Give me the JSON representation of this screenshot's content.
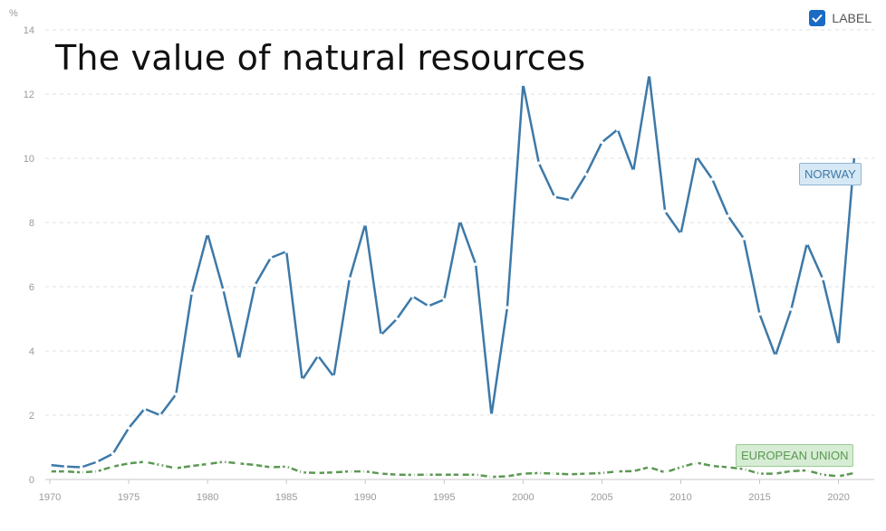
{
  "title": "The value of natural resources",
  "legend": {
    "label": "LABEL",
    "checked": true,
    "check_color": "#1a6bc4"
  },
  "chart_data": {
    "type": "line",
    "title": "The value of natural resources",
    "ylabel": "%",
    "xlabel": "",
    "ylim": [
      0,
      14
    ],
    "yticks": [
      "0",
      "2",
      "4",
      "6",
      "8",
      "10",
      "12",
      "14"
    ],
    "xticks": [
      "1970",
      "1975",
      "1980",
      "1985",
      "1990",
      "1995",
      "2000",
      "2005",
      "2010",
      "2015",
      "2020"
    ],
    "grid": true,
    "x": [
      1970,
      1971,
      1972,
      1973,
      1974,
      1975,
      1976,
      1977,
      1978,
      1979,
      1980,
      1981,
      1982,
      1983,
      1984,
      1985,
      1986,
      1987,
      1988,
      1989,
      1990,
      1991,
      1992,
      1993,
      1994,
      1995,
      1996,
      1997,
      1998,
      1999,
      2000,
      2001,
      2002,
      2003,
      2004,
      2005,
      2006,
      2007,
      2008,
      2009,
      2010,
      2011,
      2012,
      2013,
      2014,
      2015,
      2016,
      2017,
      2018,
      2019,
      2020,
      2021
    ],
    "series": [
      {
        "name": "NORWAY",
        "color": "#3d79a8",
        "values": [
          0.45,
          0.4,
          0.38,
          0.55,
          0.8,
          1.6,
          2.2,
          2.0,
          2.65,
          5.8,
          7.65,
          5.9,
          3.75,
          6.05,
          6.9,
          7.1,
          3.1,
          3.85,
          3.2,
          6.25,
          7.95,
          4.5,
          5.0,
          5.7,
          5.4,
          5.6,
          8.05,
          6.7,
          2.0,
          5.35,
          12.3,
          9.85,
          8.8,
          8.7,
          9.5,
          10.5,
          10.9,
          9.6,
          12.6,
          8.35,
          7.65,
          10.05,
          9.35,
          8.2,
          7.5,
          5.15,
          3.85,
          5.3,
          7.35,
          6.25,
          4.2,
          10.05
        ]
      },
      {
        "name": "EUROPEAN UNION",
        "color": "#5b9852",
        "values": [
          0.25,
          0.25,
          0.22,
          0.25,
          0.4,
          0.5,
          0.55,
          0.45,
          0.35,
          0.42,
          0.48,
          0.55,
          0.5,
          0.45,
          0.38,
          0.4,
          0.22,
          0.2,
          0.22,
          0.25,
          0.25,
          0.18,
          0.15,
          0.14,
          0.15,
          0.15,
          0.15,
          0.15,
          0.08,
          0.1,
          0.18,
          0.2,
          0.18,
          0.16,
          0.18,
          0.2,
          0.25,
          0.26,
          0.38,
          0.22,
          0.38,
          0.52,
          0.42,
          0.38,
          0.32,
          0.18,
          0.18,
          0.26,
          0.28,
          0.15,
          0.1,
          0.2
        ]
      }
    ]
  }
}
